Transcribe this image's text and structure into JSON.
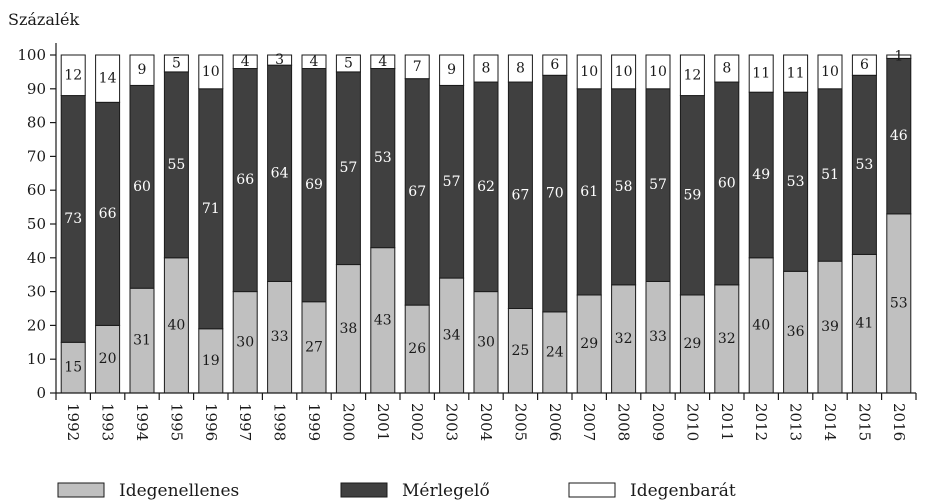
{
  "chart_data": {
    "type": "bar",
    "stacked": true,
    "title": "",
    "ylabel": "Százalék",
    "xlabel": "",
    "ylim": [
      0,
      100
    ],
    "yticks": [
      0,
      10,
      20,
      30,
      40,
      50,
      60,
      70,
      80,
      90,
      100
    ],
    "grid": false,
    "legend_position": "bottom",
    "categories": [
      "1992",
      "1993",
      "1994",
      "1995",
      "1996",
      "1997",
      "1998",
      "1999",
      "2000",
      "2001",
      "2002",
      "2003",
      "2004",
      "2005",
      "2006",
      "2007",
      "2008",
      "2009",
      "2010",
      "2011",
      "2012",
      "2013",
      "2014",
      "2015",
      "2016"
    ],
    "series": [
      {
        "name": "Idegenellenes",
        "color": "#c0c0c0",
        "label_color": "#1a1a1a",
        "values": [
          15,
          20,
          31,
          40,
          19,
          30,
          33,
          27,
          38,
          43,
          26,
          34,
          30,
          25,
          24,
          29,
          32,
          33,
          29,
          32,
          40,
          36,
          39,
          41,
          53
        ]
      },
      {
        "name": "Mérlegelő",
        "color": "#404040",
        "label_color": "#ffffff",
        "values": [
          73,
          66,
          60,
          55,
          71,
          66,
          64,
          69,
          57,
          53,
          67,
          57,
          62,
          67,
          70,
          61,
          58,
          57,
          59,
          60,
          49,
          53,
          51,
          53,
          46
        ]
      },
      {
        "name": "Idegenbarát",
        "color": "#ffffff",
        "label_color": "#1a1a1a",
        "values": [
          12,
          14,
          9,
          5,
          10,
          4,
          3,
          4,
          5,
          4,
          7,
          9,
          8,
          8,
          6,
          10,
          10,
          10,
          12,
          8,
          11,
          11,
          10,
          6,
          1
        ]
      }
    ]
  }
}
